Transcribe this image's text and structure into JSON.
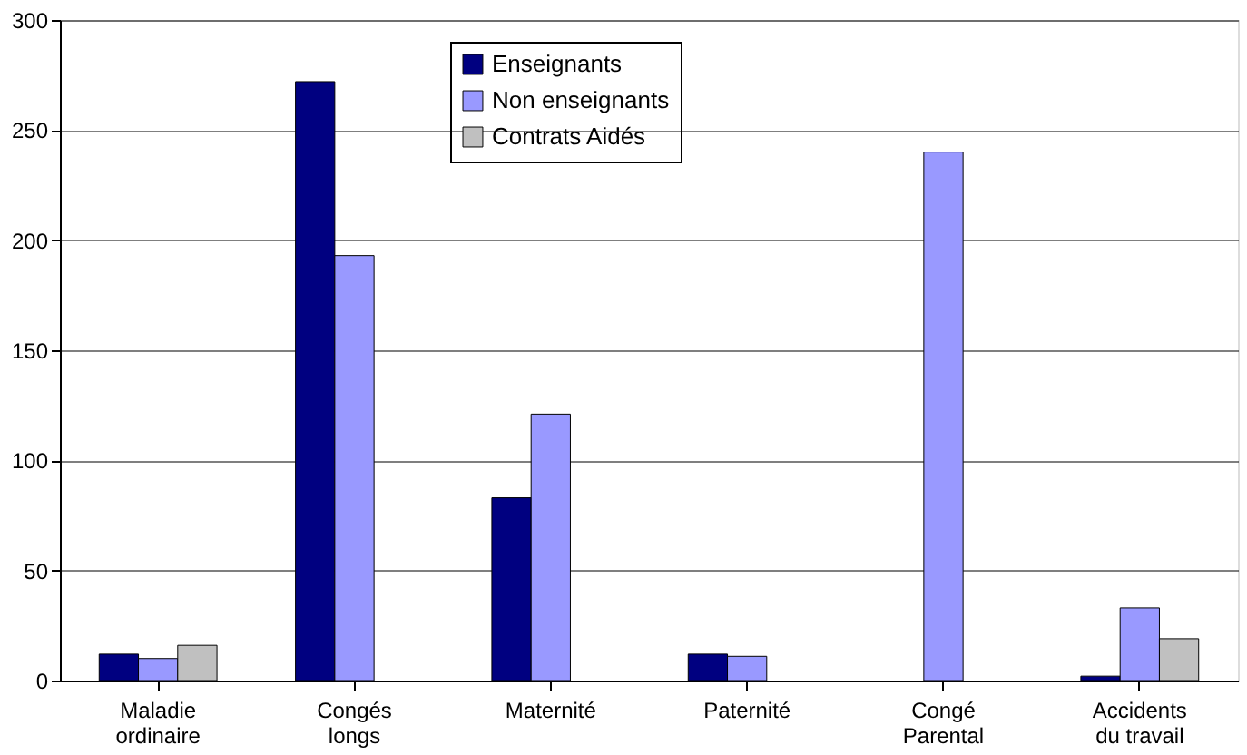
{
  "chart_data": {
    "type": "bar",
    "categories": [
      "Maladie ordinaire",
      "Congés longs",
      "Maternité",
      "Paternité",
      "Congé Parental",
      "Accidents du travail"
    ],
    "series": [
      {
        "name": "Enseignants",
        "color": "#000080",
        "values": [
          12,
          272,
          83,
          12,
          null,
          2
        ]
      },
      {
        "name": "Non enseignants",
        "color": "#9999ff",
        "values": [
          10,
          193,
          121,
          11,
          240,
          33
        ]
      },
      {
        "name": "Contrats Aidés",
        "color": "#c0c0c0",
        "values": [
          16,
          null,
          null,
          null,
          null,
          19
        ]
      }
    ],
    "ylim": [
      0,
      300
    ],
    "yticks": [
      0,
      50,
      100,
      150,
      200,
      250,
      300
    ],
    "grid": "y",
    "legend": "top"
  }
}
